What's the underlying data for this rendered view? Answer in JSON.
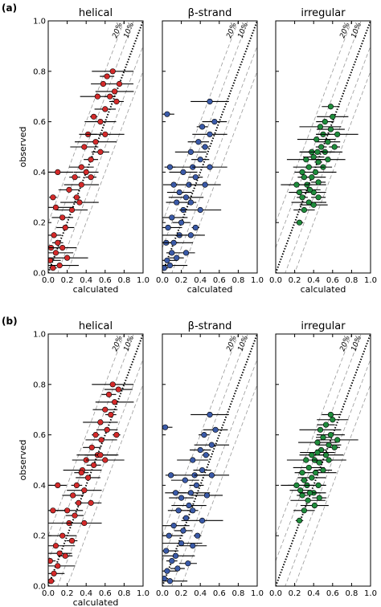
{
  "figure": {
    "panel_labels": [
      "(a)",
      "(b)"
    ]
  },
  "colors": {
    "helical": "#d42a2a",
    "beta": "#3a5aa8",
    "irregular": "#1f8c3c"
  },
  "chart_data": [
    {
      "type": "scatter",
      "panel": "a",
      "title": "helical",
      "xlabel": "calculated",
      "ylabel": "observed",
      "xlim": [
        0,
        1
      ],
      "ylim": [
        0,
        1
      ],
      "x_ticks": [
        "0.0",
        "0.2",
        "0.4",
        "0.6",
        "0.8",
        "1.0"
      ],
      "y_ticks": [
        "0.0",
        "0.2",
        "0.4",
        "0.6",
        "0.8",
        "1.0"
      ],
      "band_labels": [
        "20%",
        "10%"
      ],
      "series": [
        {
          "color": "#d42a2a",
          "points": [
            [
              0.05,
              0.02
            ],
            [
              0.02,
              0.05
            ],
            [
              0.08,
              0.08
            ],
            [
              0.1,
              0.12
            ],
            [
              0.03,
              0.1
            ],
            [
              0.12,
              0.03
            ],
            [
              0.06,
              0.15
            ],
            [
              0.15,
              0.1
            ],
            [
              0.2,
              0.06
            ],
            [
              0.18,
              0.18
            ],
            [
              0.25,
              0.25
            ],
            [
              0.3,
              0.3
            ],
            [
              0.22,
              0.33
            ],
            [
              0.35,
              0.35
            ],
            [
              0.28,
              0.38
            ],
            [
              0.4,
              0.4
            ],
            [
              0.33,
              0.28
            ],
            [
              0.45,
              0.45
            ],
            [
              0.38,
              0.5
            ],
            [
              0.5,
              0.52
            ],
            [
              0.42,
              0.55
            ],
            [
              0.55,
              0.6
            ],
            [
              0.48,
              0.62
            ],
            [
              0.6,
              0.65
            ],
            [
              0.52,
              0.7
            ],
            [
              0.65,
              0.7
            ],
            [
              0.58,
              0.75
            ],
            [
              0.7,
              0.72
            ],
            [
              0.62,
              0.78
            ],
            [
              0.75,
              0.75
            ],
            [
              0.68,
              0.8
            ],
            [
              0.55,
              0.48
            ],
            [
              0.1,
              0.4
            ],
            [
              0.05,
              0.3
            ],
            [
              0.15,
              0.22
            ],
            [
              0.08,
              0.26
            ],
            [
              0.45,
              0.38
            ],
            [
              0.35,
              0.42
            ],
            [
              0.6,
              0.55
            ],
            [
              0.72,
              0.68
            ]
          ]
        }
      ]
    },
    {
      "type": "scatter",
      "panel": "a",
      "title": "β-strand",
      "xlabel": "calculated",
      "ylabel": "",
      "xlim": [
        0,
        1
      ],
      "ylim": [
        0,
        1
      ],
      "x_ticks": [
        "0.0",
        "0.2",
        "0.4",
        "0.6",
        "0.8",
        "1.0"
      ],
      "band_labels": [
        "20%",
        "10%"
      ],
      "series": [
        {
          "color": "#3a5aa8",
          "points": [
            [
              0.02,
              0.02
            ],
            [
              0.05,
              0.05
            ],
            [
              0.08,
              0.03
            ],
            [
              0.1,
              0.08
            ],
            [
              0.04,
              0.12
            ],
            [
              0.12,
              0.12
            ],
            [
              0.15,
              0.06
            ],
            [
              0.06,
              0.18
            ],
            [
              0.18,
              0.15
            ],
            [
              0.2,
              0.2
            ],
            [
              0.1,
              0.22
            ],
            [
              0.22,
              0.25
            ],
            [
              0.15,
              0.28
            ],
            [
              0.25,
              0.3
            ],
            [
              0.3,
              0.28
            ],
            [
              0.18,
              0.32
            ],
            [
              0.28,
              0.35
            ],
            [
              0.35,
              0.38
            ],
            [
              0.22,
              0.4
            ],
            [
              0.32,
              0.42
            ],
            [
              0.4,
              0.45
            ],
            [
              0.3,
              0.48
            ],
            [
              0.45,
              0.5
            ],
            [
              0.38,
              0.52
            ],
            [
              0.5,
              0.55
            ],
            [
              0.42,
              0.58
            ],
            [
              0.55,
              0.6
            ],
            [
              0.5,
              0.68
            ],
            [
              0.05,
              0.63
            ],
            [
              0.3,
              0.15
            ],
            [
              0.4,
              0.25
            ],
            [
              0.25,
              0.08
            ],
            [
              0.45,
              0.35
            ],
            [
              0.35,
              0.18
            ],
            [
              0.12,
              0.35
            ],
            [
              0.5,
              0.42
            ],
            [
              0.08,
              0.42
            ]
          ]
        }
      ]
    },
    {
      "type": "scatter",
      "panel": "a",
      "title": "irregular",
      "xlabel": "calculated",
      "ylabel": "",
      "xlim": [
        0,
        1
      ],
      "ylim": [
        0,
        1
      ],
      "x_ticks": [
        "0.0",
        "0.2",
        "0.4",
        "0.6",
        "0.8",
        "1.0"
      ],
      "band_labels": [
        "20%",
        "10%"
      ],
      "series": [
        {
          "color": "#1f8c3c",
          "points": [
            [
              0.25,
              0.2
            ],
            [
              0.3,
              0.25
            ],
            [
              0.35,
              0.28
            ],
            [
              0.28,
              0.3
            ],
            [
              0.4,
              0.32
            ],
            [
              0.33,
              0.35
            ],
            [
              0.45,
              0.36
            ],
            [
              0.38,
              0.38
            ],
            [
              0.42,
              0.4
            ],
            [
              0.5,
              0.42
            ],
            [
              0.35,
              0.42
            ],
            [
              0.45,
              0.44
            ],
            [
              0.4,
              0.46
            ],
            [
              0.52,
              0.48
            ],
            [
              0.48,
              0.5
            ],
            [
              0.55,
              0.52
            ],
            [
              0.43,
              0.53
            ],
            [
              0.5,
              0.55
            ],
            [
              0.58,
              0.57
            ],
            [
              0.47,
              0.58
            ],
            [
              0.52,
              0.6
            ],
            [
              0.6,
              0.62
            ],
            [
              0.3,
              0.38
            ],
            [
              0.25,
              0.32
            ],
            [
              0.55,
              0.45
            ],
            [
              0.62,
              0.5
            ],
            [
              0.38,
              0.48
            ],
            [
              0.32,
              0.45
            ],
            [
              0.45,
              0.3
            ],
            [
              0.4,
              0.27
            ],
            [
              0.65,
              0.55
            ],
            [
              0.58,
              0.66
            ],
            [
              0.22,
              0.35
            ],
            [
              0.28,
              0.4
            ],
            [
              0.36,
              0.33
            ],
            [
              0.44,
              0.48
            ]
          ]
        }
      ]
    },
    {
      "type": "scatter",
      "panel": "b",
      "title": "helical",
      "xlabel": "calculated",
      "ylabel": "observed",
      "xlim": [
        0,
        1
      ],
      "ylim": [
        0,
        1
      ],
      "x_ticks": [
        "0.0",
        "0.2",
        "0.4",
        "0.6",
        "0.8",
        "1.0"
      ],
      "y_ticks": [
        "0.0",
        "0.2",
        "0.4",
        "0.6",
        "0.8",
        "1.0"
      ],
      "band_labels": [
        "20%",
        "10%"
      ],
      "series": [
        {
          "color": "#d42a2a",
          "points": [
            [
              0.03,
              0.02
            ],
            [
              0.06,
              0.05
            ],
            [
              0.1,
              0.08
            ],
            [
              0.02,
              0.1
            ],
            [
              0.12,
              0.13
            ],
            [
              0.08,
              0.16
            ],
            [
              0.18,
              0.12
            ],
            [
              0.15,
              0.2
            ],
            [
              0.22,
              0.25
            ],
            [
              0.28,
              0.28
            ],
            [
              0.2,
              0.3
            ],
            [
              0.32,
              0.33
            ],
            [
              0.26,
              0.36
            ],
            [
              0.38,
              0.38
            ],
            [
              0.3,
              0.4
            ],
            [
              0.42,
              0.43
            ],
            [
              0.36,
              0.46
            ],
            [
              0.48,
              0.48
            ],
            [
              0.4,
              0.5
            ],
            [
              0.52,
              0.52
            ],
            [
              0.46,
              0.55
            ],
            [
              0.56,
              0.58
            ],
            [
              0.5,
              0.6
            ],
            [
              0.62,
              0.62
            ],
            [
              0.55,
              0.65
            ],
            [
              0.66,
              0.68
            ],
            [
              0.6,
              0.7
            ],
            [
              0.7,
              0.73
            ],
            [
              0.64,
              0.76
            ],
            [
              0.74,
              0.78
            ],
            [
              0.68,
              0.8
            ],
            [
              0.1,
              0.4
            ],
            [
              0.55,
              0.52
            ],
            [
              0.72,
              0.6
            ],
            [
              0.45,
              0.33
            ],
            [
              0.38,
              0.25
            ],
            [
              0.25,
              0.18
            ],
            [
              0.05,
              0.3
            ],
            [
              0.6,
              0.5
            ],
            [
              0.35,
              0.45
            ]
          ]
        }
      ]
    },
    {
      "type": "scatter",
      "panel": "b",
      "title": "β-strand",
      "xlabel": "",
      "ylabel": "",
      "xlim": [
        0,
        1
      ],
      "ylim": [
        0,
        1
      ],
      "x_ticks": [
        "0.0",
        "0.2",
        "0.4",
        "0.6",
        "0.8",
        "1.0"
      ],
      "band_labels": [
        "20%",
        "10%"
      ],
      "series": [
        {
          "color": "#3a5aa8",
          "points": [
            [
              0.02,
              0.03
            ],
            [
              0.05,
              0.06
            ],
            [
              0.08,
              0.02
            ],
            [
              0.1,
              0.1
            ],
            [
              0.04,
              0.14
            ],
            [
              0.14,
              0.12
            ],
            [
              0.16,
              0.07
            ],
            [
              0.07,
              0.2
            ],
            [
              0.2,
              0.17
            ],
            [
              0.22,
              0.22
            ],
            [
              0.12,
              0.24
            ],
            [
              0.25,
              0.27
            ],
            [
              0.17,
              0.3
            ],
            [
              0.28,
              0.32
            ],
            [
              0.32,
              0.3
            ],
            [
              0.2,
              0.35
            ],
            [
              0.3,
              0.37
            ],
            [
              0.36,
              0.4
            ],
            [
              0.24,
              0.42
            ],
            [
              0.34,
              0.44
            ],
            [
              0.42,
              0.46
            ],
            [
              0.32,
              0.5
            ],
            [
              0.46,
              0.52
            ],
            [
              0.4,
              0.54
            ],
            [
              0.52,
              0.56
            ],
            [
              0.44,
              0.6
            ],
            [
              0.56,
              0.62
            ],
            [
              0.5,
              0.68
            ],
            [
              0.03,
              0.63
            ],
            [
              0.32,
              0.16
            ],
            [
              0.42,
              0.26
            ],
            [
              0.27,
              0.09
            ],
            [
              0.47,
              0.36
            ],
            [
              0.37,
              0.2
            ],
            [
              0.14,
              0.37
            ],
            [
              0.52,
              0.44
            ],
            [
              0.09,
              0.44
            ]
          ]
        }
      ]
    },
    {
      "type": "scatter",
      "panel": "b",
      "title": "irregular",
      "xlabel": "",
      "ylabel": "",
      "xlim": [
        0,
        1
      ],
      "ylim": [
        0,
        1
      ],
      "x_ticks": [
        "0.0",
        "0.2",
        "0.4",
        "0.6",
        "0.8",
        "1.0"
      ],
      "band_labels": [
        "20%",
        "10%"
      ],
      "series": [
        {
          "color": "#1f8c3c",
          "points": [
            [
              0.25,
              0.26
            ],
            [
              0.3,
              0.3
            ],
            [
              0.34,
              0.34
            ],
            [
              0.28,
              0.36
            ],
            [
              0.4,
              0.37
            ],
            [
              0.33,
              0.4
            ],
            [
              0.45,
              0.4
            ],
            [
              0.38,
              0.43
            ],
            [
              0.42,
              0.45
            ],
            [
              0.5,
              0.46
            ],
            [
              0.35,
              0.47
            ],
            [
              0.46,
              0.49
            ],
            [
              0.41,
              0.5
            ],
            [
              0.53,
              0.52
            ],
            [
              0.48,
              0.54
            ],
            [
              0.56,
              0.56
            ],
            [
              0.44,
              0.57
            ],
            [
              0.5,
              0.59
            ],
            [
              0.58,
              0.6
            ],
            [
              0.47,
              0.62
            ],
            [
              0.53,
              0.64
            ],
            [
              0.6,
              0.66
            ],
            [
              0.3,
              0.42
            ],
            [
              0.26,
              0.38
            ],
            [
              0.56,
              0.5
            ],
            [
              0.62,
              0.55
            ],
            [
              0.38,
              0.52
            ],
            [
              0.32,
              0.5
            ],
            [
              0.46,
              0.35
            ],
            [
              0.41,
              0.32
            ],
            [
              0.65,
              0.58
            ],
            [
              0.58,
              0.68
            ],
            [
              0.22,
              0.4
            ],
            [
              0.28,
              0.45
            ],
            [
              0.36,
              0.37
            ],
            [
              0.44,
              0.53
            ]
          ]
        }
      ]
    }
  ]
}
